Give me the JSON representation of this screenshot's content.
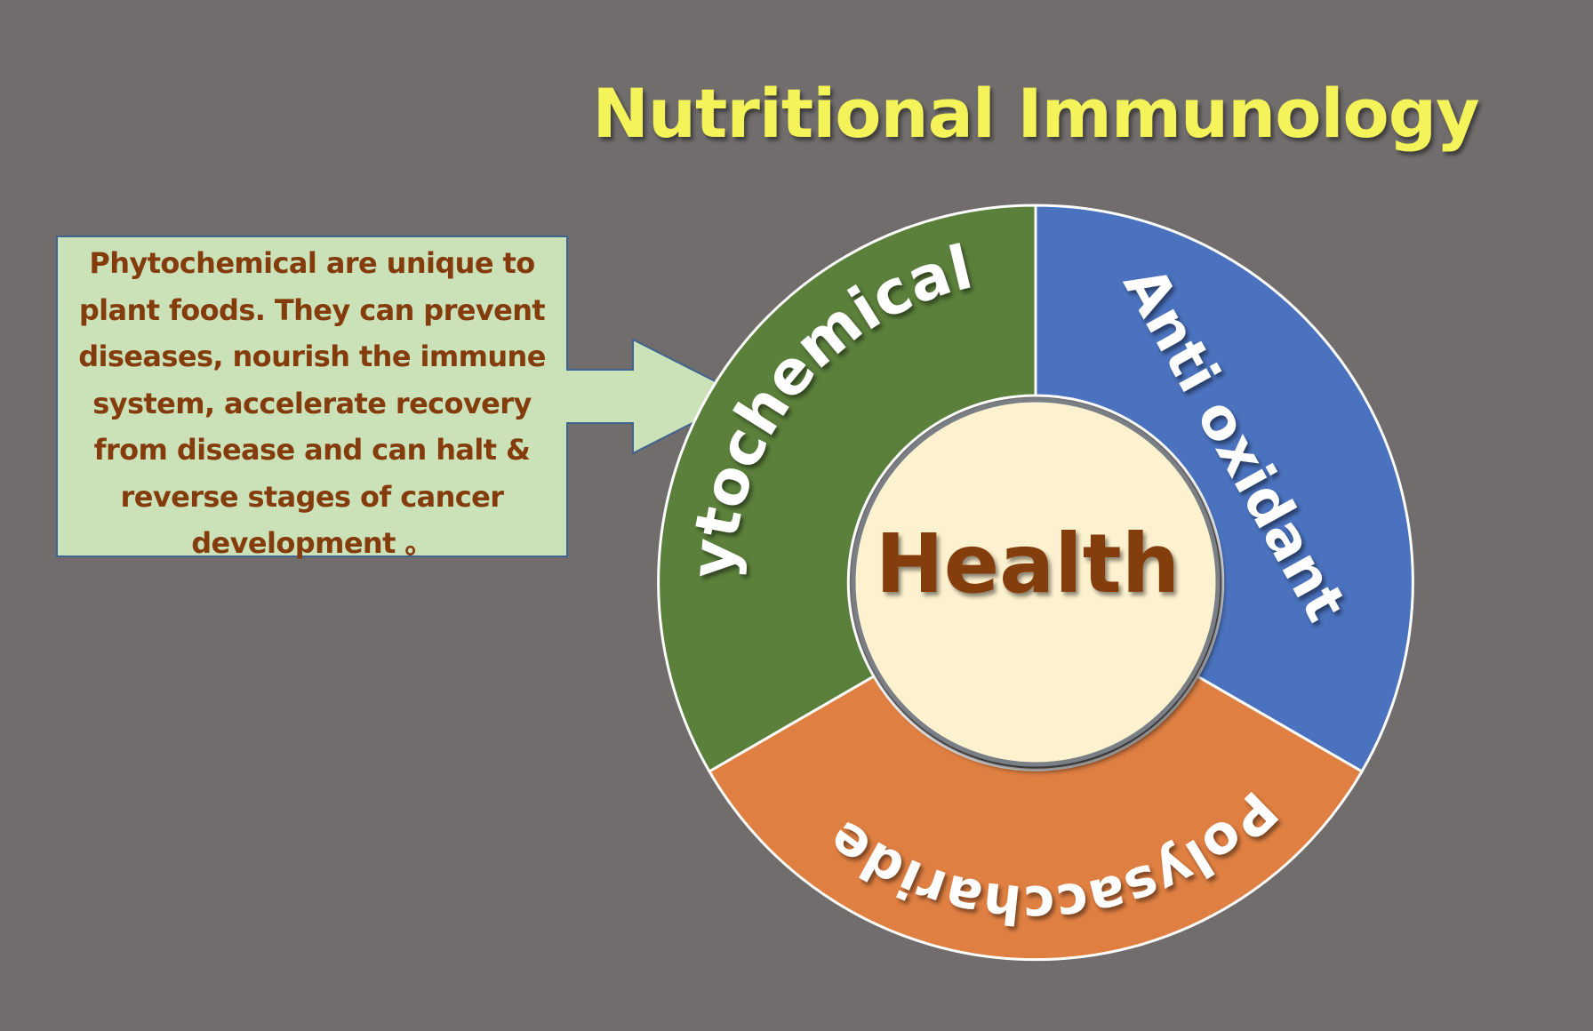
{
  "title": "Nutritional Immunology",
  "callout": {
    "text": "Phytochemical are unique to plant foods. They can prevent diseases, nourish the immune system, accelerate recovery from disease and can halt & reverse stages of cancer development 。"
  },
  "wheel": {
    "center": "Health",
    "segments": [
      {
        "label": "Phytochemical",
        "color": "#5b803b"
      },
      {
        "label": "Anti oxidant",
        "color": "#4a72be"
      },
      {
        "label": "Polysaccharide",
        "color": "#e07f42"
      }
    ],
    "hub_color": "#fdf2cf"
  },
  "colors": {
    "background": "#716d6d",
    "title": "#f5f35a",
    "callout_fill": "#cbe1b7",
    "callout_border": "#3f6491",
    "callout_text": "#843c0c"
  }
}
